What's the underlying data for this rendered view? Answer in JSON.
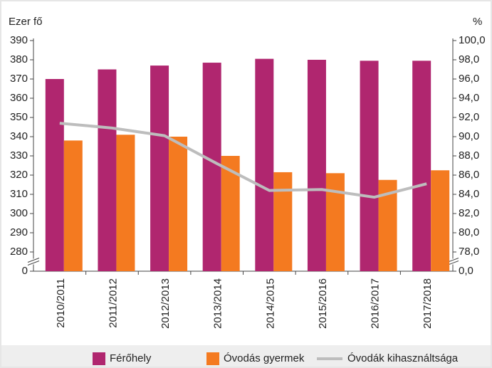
{
  "chart_data": {
    "type": "bar_line",
    "y_label": "Ezer fő",
    "y2_label": "%",
    "categories": [
      "2010/2011",
      "2011/2012",
      "2012/2013",
      "2013/2014",
      "2014/2015",
      "2015/2016",
      "2016/2017",
      "2017/2018"
    ],
    "series": [
      {
        "name": "Férőhely",
        "color": "#b0266f",
        "type": "bar",
        "values": [
          370,
          375,
          377,
          378.5,
          380.5,
          380,
          379.5,
          379.5
        ]
      },
      {
        "name": "Óvodás gyermek",
        "color": "#f47a20",
        "type": "bar",
        "values": [
          338,
          341,
          340,
          330,
          321.5,
          321,
          317.5,
          322.5
        ]
      },
      {
        "name": "Óvodák kihasználtsága",
        "color": "#bdbdbd",
        "type": "line",
        "axis": "y2",
        "values": [
          91.4,
          90.9,
          90.1,
          87.2,
          84.4,
          84.5,
          83.7,
          85.1
        ]
      }
    ],
    "ylim": [
      0,
      390
    ],
    "broken_axis": true,
    "yticks": [
      0,
      280,
      290,
      300,
      310,
      320,
      330,
      340,
      350,
      360,
      370,
      380,
      390
    ],
    "y2lim": [
      0,
      100
    ],
    "y2ticks": [
      {
        "value": 0,
        "label": "0,0"
      },
      {
        "value": 78,
        "label": "78,0"
      },
      {
        "value": 80,
        "label": "80,0"
      },
      {
        "value": 82,
        "label": "82,0"
      },
      {
        "value": 84,
        "label": "84,0"
      },
      {
        "value": 86,
        "label": "86,0"
      },
      {
        "value": 88,
        "label": "88,0"
      },
      {
        "value": 90,
        "label": "90,0"
      },
      {
        "value": 92,
        "label": "92,0"
      },
      {
        "value": 94,
        "label": "94,0"
      },
      {
        "value": 96,
        "label": "96,0"
      },
      {
        "value": 98,
        "label": "98,0"
      },
      {
        "value": 100,
        "label": "100,0"
      }
    ],
    "legend": "bottom",
    "grid": false
  }
}
